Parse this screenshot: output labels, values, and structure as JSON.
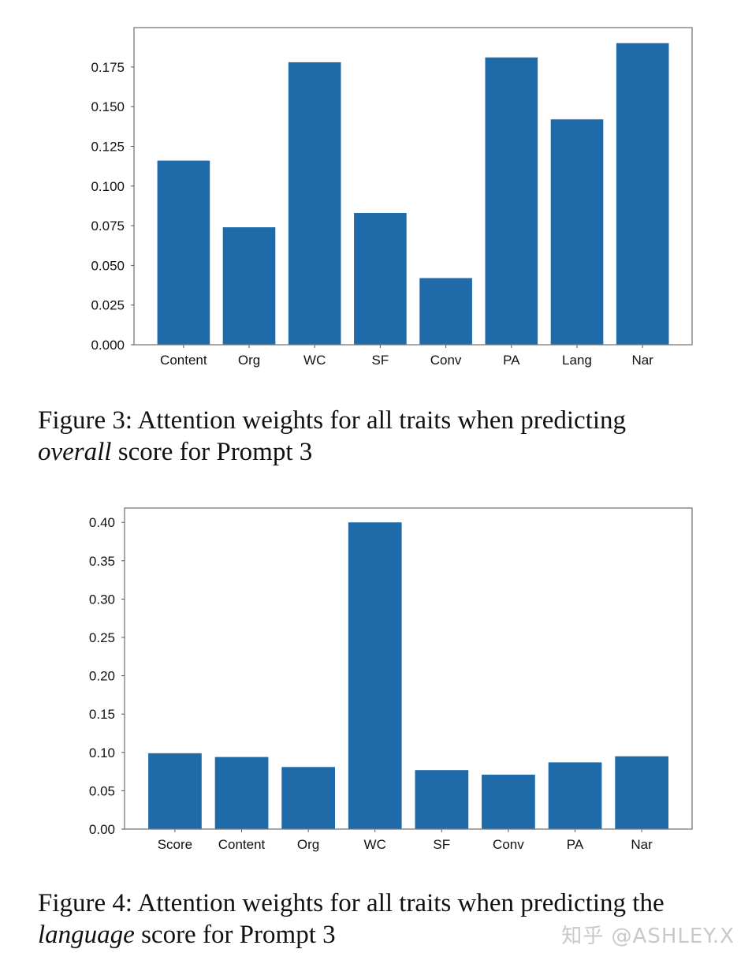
{
  "chart_data": [
    {
      "type": "bar",
      "title": "",
      "xlabel": "",
      "ylabel": "",
      "categories": [
        "Content",
        "Org",
        "WC",
        "SF",
        "Conv",
        "PA",
        "Lang",
        "Nar"
      ],
      "values": [
        0.116,
        0.074,
        0.178,
        0.083,
        0.042,
        0.181,
        0.142,
        0.19
      ],
      "ylim": [
        0,
        0.2
      ],
      "yticks": [
        "0.000",
        "0.025",
        "0.050",
        "0.075",
        "0.100",
        "0.125",
        "0.150",
        "0.175"
      ],
      "grid": false,
      "legend": null,
      "bar_color": "#1f6aa8"
    },
    {
      "type": "bar",
      "title": "",
      "xlabel": "",
      "ylabel": "",
      "categories": [
        "Score",
        "Content",
        "Org",
        "WC",
        "SF",
        "Conv",
        "PA",
        "Nar"
      ],
      "values": [
        0.099,
        0.094,
        0.081,
        0.4,
        0.077,
        0.071,
        0.087,
        0.095
      ],
      "ylim": [
        0,
        0.42
      ],
      "yticks": [
        "0.00",
        "0.05",
        "0.10",
        "0.15",
        "0.20",
        "0.25",
        "0.30",
        "0.35",
        "0.40"
      ],
      "grid": false,
      "legend": null,
      "bar_color": "#1f6aa8"
    }
  ],
  "figures": [
    {
      "caption_prefix": "Figure 3: Attention weights for all traits when predicting",
      "caption_italic": "overall",
      "caption_suffix": " score for Prompt 3"
    },
    {
      "caption_prefix": "Figure 4: Attention weights for all traits when predicting the",
      "caption_italic": "language",
      "caption_suffix": " score for Prompt 3"
    }
  ],
  "watermark": "知乎 @ASHLEY.X"
}
